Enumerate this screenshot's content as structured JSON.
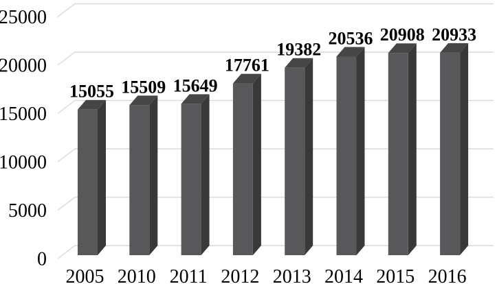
{
  "chart_data": {
    "type": "bar",
    "style": "3d-column",
    "title": "",
    "xlabel": "",
    "ylabel": "",
    "categories": [
      "2005",
      "2010",
      "2011",
      "2012",
      "2013",
      "2014",
      "2015",
      "2016"
    ],
    "values": [
      15055,
      15509,
      15649,
      17761,
      19382,
      20536,
      20908,
      20933
    ],
    "data_labels": [
      "15055",
      "15509",
      "15649",
      "17761",
      "19382",
      "20536",
      "20908",
      "20933"
    ],
    "yticks": [
      0,
      5000,
      10000,
      15000,
      20000,
      25000
    ],
    "ytick_labels": [
      "0",
      "5000",
      "10000",
      "15000",
      "20000",
      "25000"
    ],
    "ylim": [
      0,
      25000
    ],
    "grid": true,
    "legend_position": "none"
  },
  "style": {
    "background": "#ffffff",
    "bar_front": "#58585a",
    "bar_side": "#393939",
    "bar_top": "#464646",
    "gridline": "#d9d9d9",
    "text": "#000000"
  }
}
